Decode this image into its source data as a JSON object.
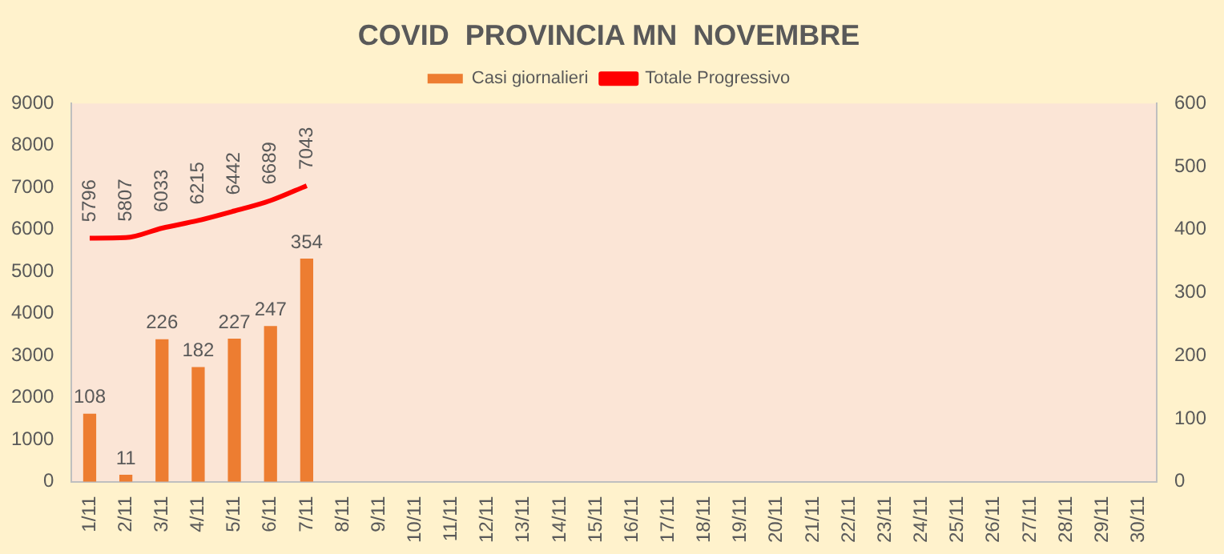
{
  "chart_data": {
    "type": "bar",
    "title": "COVID  PROVINCIA MN  NOVEMBRE",
    "categories": [
      "1/11",
      "2/11",
      "3/11",
      "4/11",
      "5/11",
      "6/11",
      "7/11",
      "8/11",
      "9/11",
      "10/11",
      "11/11",
      "12/11",
      "13/11",
      "14/11",
      "15/11",
      "16/11",
      "17/11",
      "18/11",
      "19/11",
      "20/11",
      "21/11",
      "22/11",
      "23/11",
      "24/11",
      "25/11",
      "26/11",
      "27/11",
      "28/11",
      "29/11",
      "30/11"
    ],
    "series": [
      {
        "name": "Casi giornalieri",
        "axis": "y2",
        "color": "#ed7d31",
        "values": [
          108,
          11,
          226,
          182,
          227,
          247,
          354,
          null,
          null,
          null,
          null,
          null,
          null,
          null,
          null,
          null,
          null,
          null,
          null,
          null,
          null,
          null,
          null,
          null,
          null,
          null,
          null,
          null,
          null,
          null
        ]
      },
      {
        "name": "Totale Progressivo",
        "type": "line",
        "color": "#ff0000",
        "values": [
          5796,
          5807,
          6033,
          6215,
          6442,
          6689,
          7043,
          null,
          null,
          null,
          null,
          null,
          null,
          null,
          null,
          null,
          null,
          null,
          null,
          null,
          null,
          null,
          null,
          null,
          null,
          null,
          null,
          null,
          null,
          null
        ]
      }
    ],
    "ylim": [
      0,
      9000
    ],
    "yticks": [
      0,
      1000,
      2000,
      3000,
      4000,
      5000,
      6000,
      7000,
      8000,
      9000
    ],
    "y2lim": [
      0,
      600
    ],
    "y2ticks": [
      0,
      100,
      200,
      300,
      400,
      500,
      600
    ],
    "data_labels": true,
    "legend": "top",
    "grid": false
  }
}
